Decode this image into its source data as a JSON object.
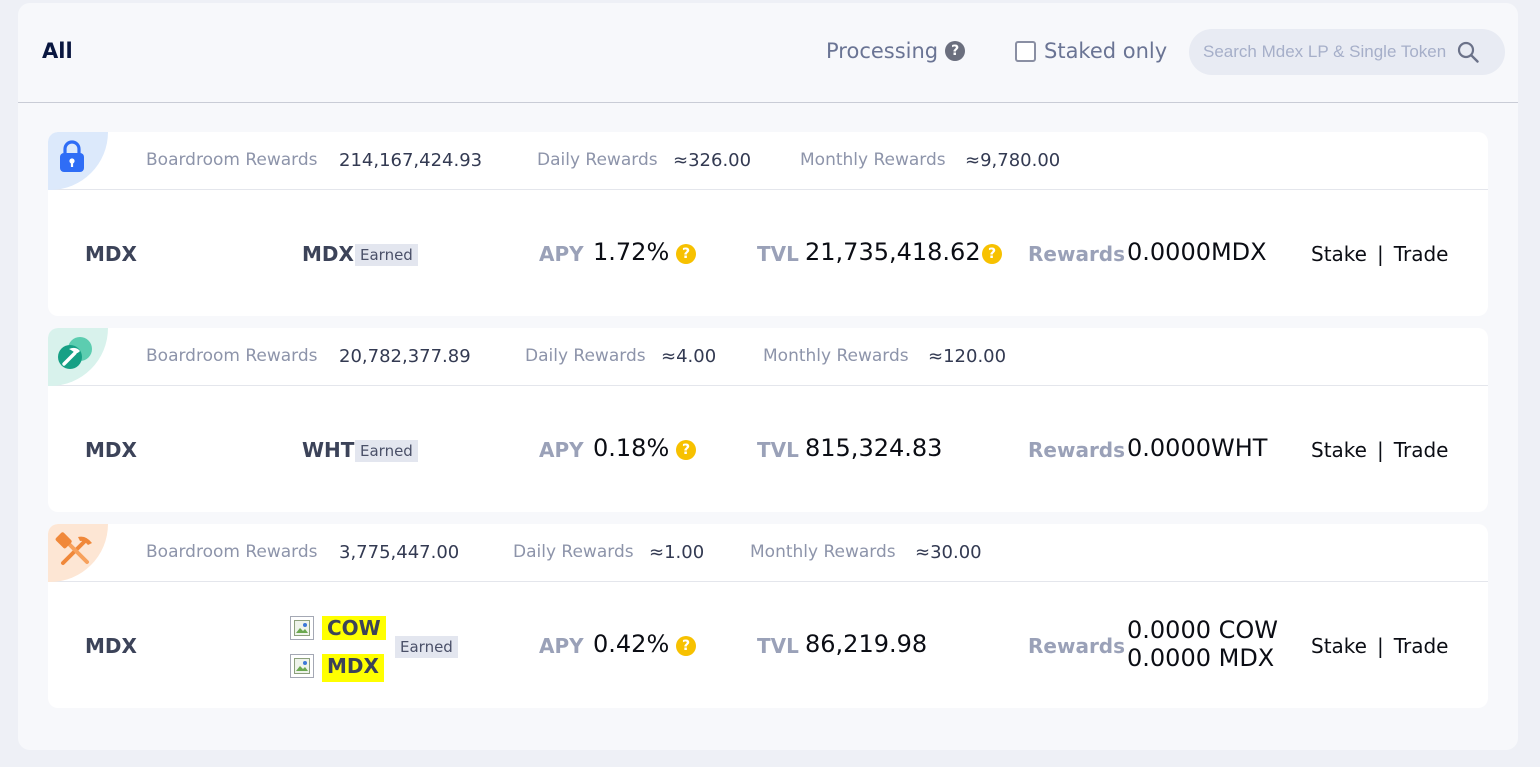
{
  "header": {
    "tab_all": "All",
    "processing_label": "Processing",
    "staked_only_label": "Staked only",
    "search_placeholder": "Search Mdex LP & Single Token"
  },
  "colors": {
    "blue_corner": "#dce9fb",
    "green_corner": "#d8f2ec",
    "orange_corner": "#fde6d4",
    "help_yellow": "#f7c100"
  },
  "labels": {
    "boardroom_rewards": "Boardroom Rewards",
    "daily_rewards": "Daily Rewards",
    "monthly_rewards": "Monthly Rewards",
    "apy": "APY",
    "tvl": "TVL",
    "rewards": "Rewards",
    "earned": "Earned",
    "stake": "Stake",
    "separator": "|",
    "trade": "Trade",
    "help_glyph": "?"
  },
  "cards": [
    {
      "icon": "lock-icon",
      "boardroom_rewards": "214,167,424.93",
      "daily_rewards": "≈326.00",
      "monthly_rewards": "≈9,780.00",
      "pool": "MDX",
      "earned_token": "MDX",
      "apy": "1.72%",
      "tvl": "21,735,418.62",
      "rewards": "0.0000MDX"
    },
    {
      "icon": "pickaxe-icon",
      "boardroom_rewards": "20,782,377.89",
      "daily_rewards": "≈4.00",
      "monthly_rewards": "≈120.00",
      "pool": "MDX",
      "earned_token": "WHT",
      "apy": "0.18%",
      "tvl": "815,324.83",
      "rewards": "0.0000WHT"
    },
    {
      "icon": "hammer-pickaxe-icon",
      "boardroom_rewards": "3,775,447.00",
      "daily_rewards": "≈1.00",
      "monthly_rewards": "≈30.00",
      "pool": "MDX",
      "earned_tokens": [
        "COW",
        "MDX"
      ],
      "apy": "0.42%",
      "tvl": "86,219.98",
      "rewards_lines": [
        "0.0000 COW",
        "0.0000 MDX"
      ]
    }
  ]
}
